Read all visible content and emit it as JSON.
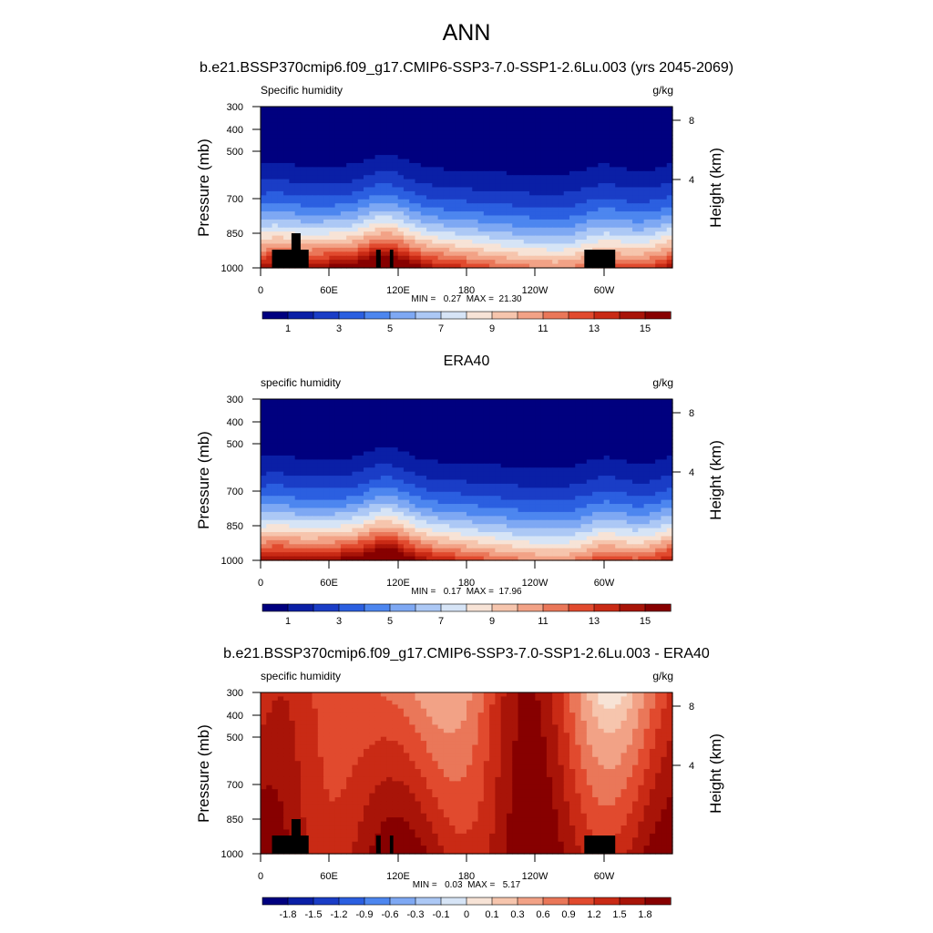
{
  "figure": {
    "title": "ANN",
    "subtitle": "b.e21.BSSP370cmip6.f09_g17.CMIP6-SSP3-7.0-SSP1-2.6Lu.003 (yrs 2045-2069)"
  },
  "colors": {
    "full_levels": [
      "#00007f",
      "#0a1fa6",
      "#1a3dc6",
      "#2b5fe0",
      "#4d86ef",
      "#7ea8f3",
      "#acc8f5",
      "#d6e4f6",
      "#f7e3d6",
      "#f6c5ad",
      "#f2a286",
      "#ea7759",
      "#e14a2e",
      "#c92a15",
      "#a81408",
      "#870000"
    ],
    "diff_levels": [
      "#00007f",
      "#0a1fa6",
      "#1a3dc6",
      "#2b5fe0",
      "#4d86ef",
      "#7ea8f3",
      "#acc8f5",
      "#d6e4f6",
      "#f7e3d6",
      "#f6c5ad",
      "#f2a286",
      "#ea7759",
      "#e14a2e",
      "#c92a15",
      "#a81408",
      "#870000"
    ],
    "land_mask": "#000000"
  },
  "chart_data": [
    {
      "type": "heatmap",
      "panel_title": "",
      "left_label": "Specific humidity",
      "right_label": "g/kg",
      "ylabel": "Pressure (mb)",
      "y2label": "Height (km)",
      "yticks": [
        "300",
        "400",
        "500",
        "700",
        "850",
        "1000"
      ],
      "y2ticks": [
        "8",
        "4"
      ],
      "xticks": [
        "0",
        "60E",
        "120E",
        "180",
        "120W",
        "60W"
      ],
      "stats": "MIN =   0.27  MAX =  21.30",
      "colorbar_labels": [
        "1",
        "3",
        "5",
        "7",
        "9",
        "11",
        "13",
        "15"
      ],
      "colorbar_levels": [
        0.5,
        1,
        2,
        3,
        4,
        5,
        6,
        7,
        8,
        9,
        10,
        11,
        12,
        13,
        14,
        15
      ],
      "field": {
        "surface_max": 15.8,
        "top_min": 0.27,
        "equator_wet_longitudes_deg": [
          10,
          105,
          115,
          300
        ]
      },
      "land_mask": true
    },
    {
      "type": "heatmap",
      "panel_title": "ERA40",
      "left_label": "specific humidity",
      "right_label": "g/kg",
      "ylabel": "Pressure (mb)",
      "y2label": "Height (km)",
      "yticks": [
        "300",
        "400",
        "500",
        "700",
        "850",
        "1000"
      ],
      "y2ticks": [
        "8",
        "4"
      ],
      "xticks": [
        "0",
        "60E",
        "120E",
        "180",
        "120W",
        "60W"
      ],
      "stats": "MIN =   0.17  MAX =  17.96",
      "colorbar_labels": [
        "1",
        "3",
        "5",
        "7",
        "9",
        "11",
        "13",
        "15"
      ],
      "colorbar_levels": [
        0.5,
        1,
        2,
        3,
        4,
        5,
        6,
        7,
        8,
        9,
        10,
        11,
        12,
        13,
        14,
        15
      ],
      "field": {
        "surface_max": 15.5,
        "top_min": 0.17,
        "equator_wet_longitudes_deg": [
          10,
          105,
          115,
          300
        ]
      },
      "land_mask": false
    },
    {
      "type": "heatmap",
      "panel_title": "b.e21.BSSP370cmip6.f09_g17.CMIP6-SSP3-7.0-SSP1-2.6Lu.003 - ERA40",
      "left_label": "specific humidity",
      "right_label": "g/kg",
      "ylabel": "Pressure (mb)",
      "y2label": "Height (km)",
      "yticks": [
        "300",
        "400",
        "500",
        "700",
        "850",
        "1000"
      ],
      "y2ticks": [
        "8",
        "4"
      ],
      "xticks": [
        "0",
        "60E",
        "120E",
        "180",
        "120W",
        "60W"
      ],
      "stats": "MIN =   0.03  MAX =   5.17",
      "colorbar_labels": [
        "-1.8",
        "-1.5",
        "-1.2",
        "-0.9",
        "-0.6",
        "-0.3",
        "-0.1",
        "0",
        "0.1",
        "0.3",
        "0.6",
        "0.9",
        "1.2",
        "1.5",
        "1.8"
      ],
      "colorbar_levels": [
        -2.0,
        -1.8,
        -1.5,
        -1.2,
        -0.9,
        -0.6,
        -0.3,
        -0.1,
        0,
        0.1,
        0.3,
        0.6,
        0.9,
        1.2,
        1.5,
        1.8
      ],
      "field": {
        "min": 0.03,
        "max": 5.17
      },
      "land_mask": true
    }
  ]
}
